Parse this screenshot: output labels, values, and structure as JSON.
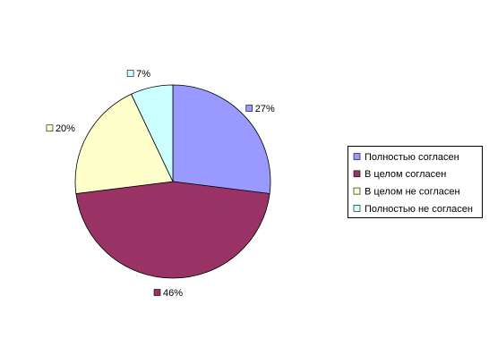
{
  "chart_data": {
    "type": "pie",
    "categories": [
      "Полностью согласен",
      "В целом согласен",
      "В целом не согласен",
      "Полностью не согласен"
    ],
    "values": [
      27,
      46,
      20,
      7
    ],
    "value_labels": [
      "27%",
      "46%",
      "20%",
      "7%"
    ],
    "colors": [
      "#9999ff",
      "#993366",
      "#ffffcc",
      "#ccffff"
    ],
    "legend": "right"
  }
}
